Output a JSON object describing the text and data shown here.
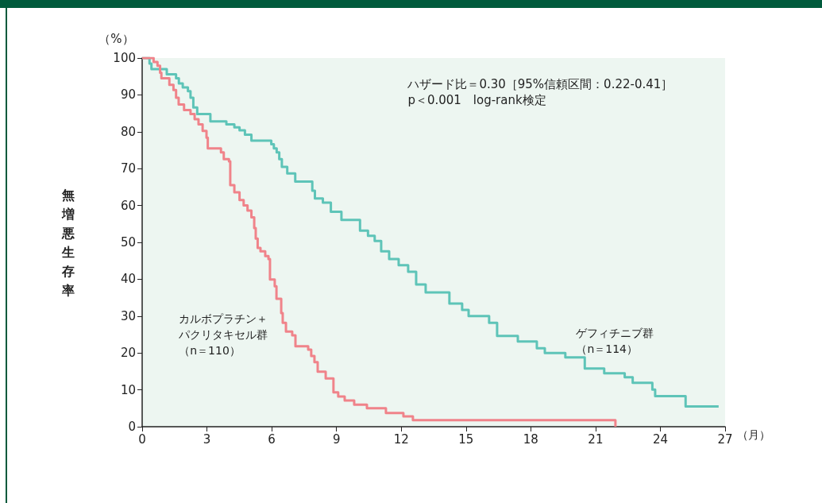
{
  "chart_data": {
    "type": "step",
    "xlabel": "（月）",
    "ylabel": "無増悪生存率",
    "annotations": [
      "ハザード比＝0.30［95%信頼区間：0.22-0.41］\np＜0.001　log-rank検定",
      "（%）"
    ],
    "xlim": [
      0,
      27
    ],
    "xticks": [
      0,
      3,
      6,
      9,
      12,
      15,
      18,
      21,
      24,
      27
    ],
    "ylim": [
      0,
      100
    ],
    "yticks": [
      0,
      10,
      20,
      30,
      40,
      50,
      60,
      70,
      80,
      90,
      100
    ],
    "grid": false,
    "legend": false,
    "marker": "none",
    "line_style": "solid",
    "series": [
      {
        "name": "ゲフィチニブ群（n＝114）",
        "color": "#5ec4b8",
        "x": [
          0,
          0.34,
          0.43,
          1.14,
          1.57,
          1.7,
          1.88,
          2.12,
          2.24,
          2.37,
          2.55,
          3.16,
          3.9,
          4.27,
          4.51,
          4.76,
          5.06,
          5.98,
          6.1,
          6.23,
          6.35,
          6.47,
          6.72,
          7.09,
          7.88,
          8.0,
          8.37,
          8.74,
          9.23,
          10.09,
          10.46,
          10.77,
          11.07,
          11.44,
          11.88,
          12.32,
          12.69,
          13.13,
          14.23,
          14.82,
          15.12,
          16.07,
          16.44,
          17.4,
          18.28,
          18.65,
          19.6,
          20.5,
          21.4,
          22.35,
          22.72,
          23.63,
          23.76,
          25.17,
          26.7
        ],
        "values": [
          100,
          98.5,
          97,
          95.6,
          94.5,
          93.1,
          92,
          91,
          89.2,
          86.6,
          84.8,
          82.8,
          82,
          81.2,
          80.4,
          79.2,
          77.6,
          76.6,
          75.5,
          74.4,
          72.6,
          70.5,
          68.7,
          66.5,
          64,
          61.9,
          60.8,
          58.3,
          56.1,
          53.2,
          51.8,
          50.4,
          47.6,
          45.5,
          43.8,
          42,
          38.6,
          36.4,
          33.4,
          31.7,
          30,
          28.2,
          24.6,
          23.1,
          21.3,
          20,
          18.8,
          15.8,
          14.5,
          13.4,
          11.9,
          10.1,
          8.3,
          5.5,
          5.5
        ]
      },
      {
        "name": "カルボプラチン＋パクリタキセル群（n＝110）",
        "color": "#f0838a",
        "x": [
          0,
          0.53,
          0.71,
          0.83,
          0.89,
          1.26,
          1.45,
          1.57,
          1.69,
          1.94,
          2.24,
          2.43,
          2.61,
          2.8,
          2.98,
          3.04,
          3.65,
          3.78,
          4.02,
          4.08,
          4.27,
          4.51,
          4.7,
          4.88,
          5.06,
          5.19,
          5.26,
          5.35,
          5.48,
          5.7,
          5.85,
          5.92,
          6.14,
          6.22,
          6.44,
          6.51,
          6.66,
          6.95,
          7.1,
          7.69,
          7.83,
          7.98,
          8.13,
          8.5,
          8.86,
          9.08,
          9.38,
          9.82,
          10.41,
          11.29,
          12.1,
          12.54,
          21.92
        ],
        "values": [
          100,
          98.9,
          97.9,
          96,
          94.5,
          92.7,
          91.3,
          89.2,
          87.4,
          85.9,
          84.8,
          83.4,
          82,
          80.2,
          78.4,
          75.5,
          74.4,
          72.6,
          72,
          65.5,
          63.6,
          61.5,
          60,
          58.6,
          56.8,
          53.9,
          51,
          48.5,
          47.6,
          46.3,
          45.5,
          39.9,
          38.1,
          34.7,
          30.8,
          28.2,
          25.8,
          24.8,
          21.8,
          20.9,
          19.2,
          17.5,
          14.9,
          13.1,
          9.3,
          8.2,
          7.1,
          6,
          5,
          3.7,
          2.8,
          1.8,
          0
        ]
      }
    ]
  }
}
